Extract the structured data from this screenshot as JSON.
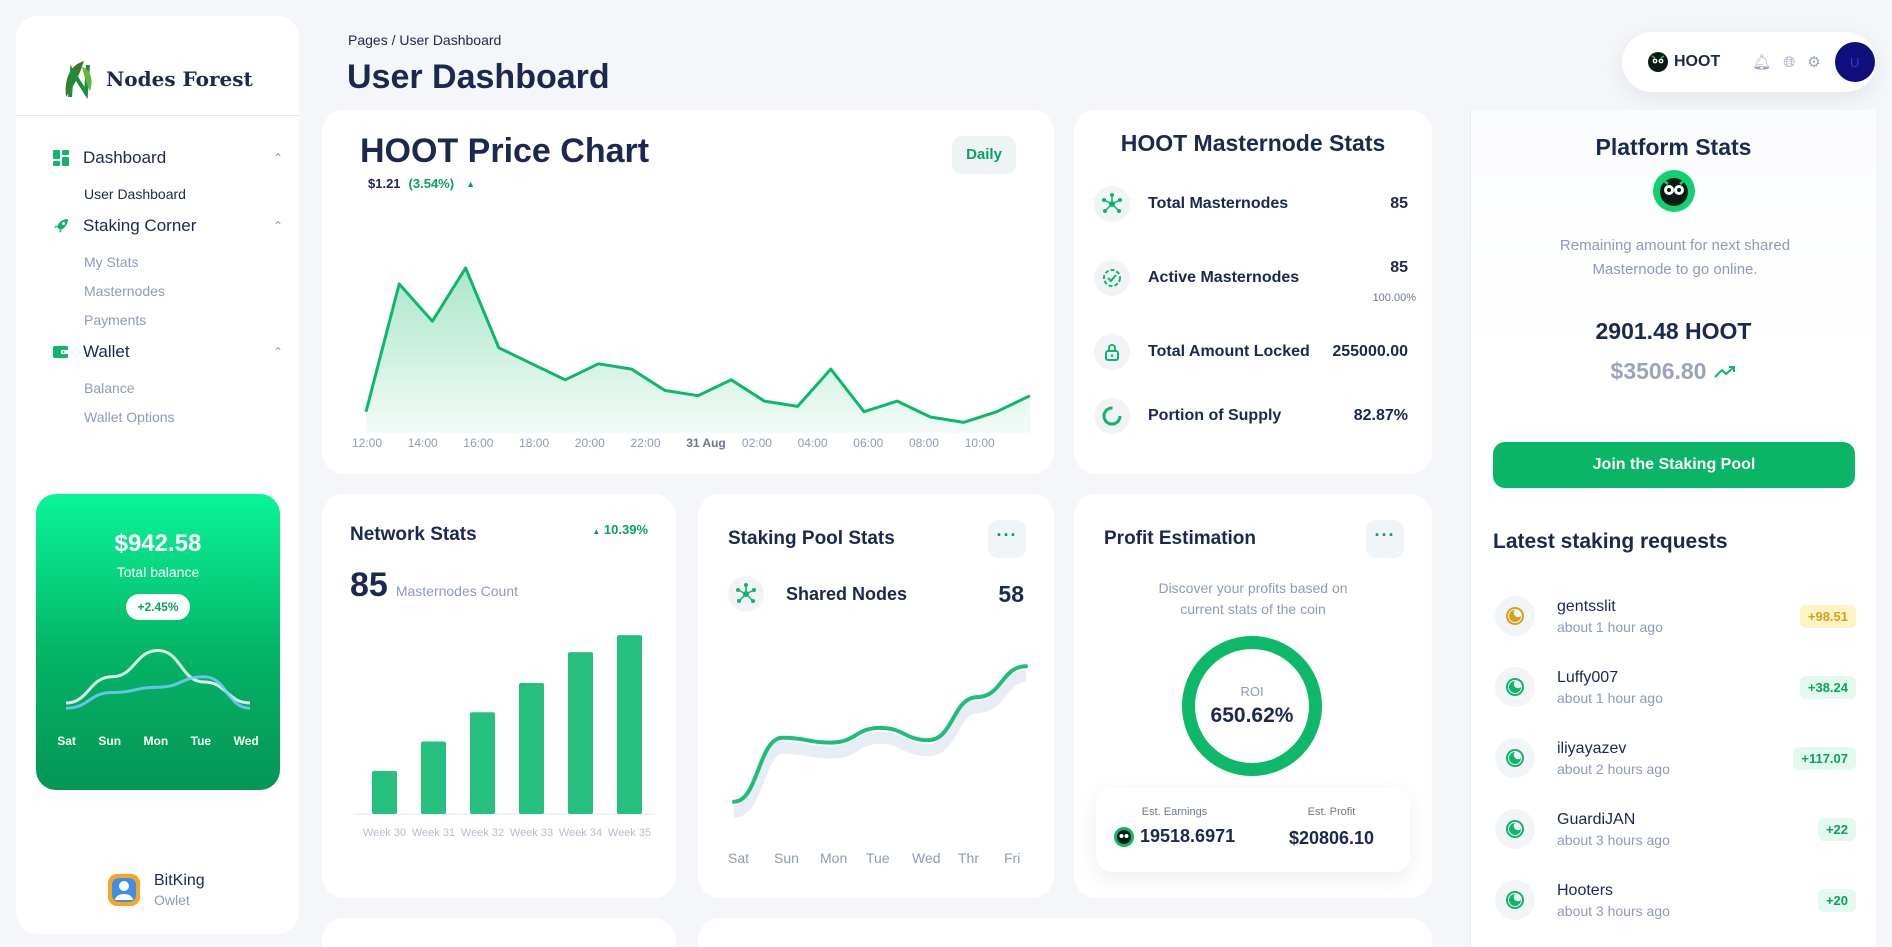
{
  "brand": {
    "name": "Nodes Forest"
  },
  "nav": {
    "dashboard": "Dashboard",
    "user_dashboard": "User Dashboard",
    "staking": "Staking Corner",
    "my_stats": "My Stats",
    "masternodes": "Masternodes",
    "payments": "Payments",
    "wallet": "Wallet",
    "balance": "Balance",
    "wallet_options": "Wallet Options"
  },
  "balance_card": {
    "amount": "$942.58",
    "label": "Total balance",
    "change": "+2.45%",
    "days": [
      "Sat",
      "Sun",
      "Mon",
      "Tue",
      "Wed"
    ]
  },
  "user": {
    "name": "BitKing",
    "role": "Owlet"
  },
  "header": {
    "breadcrumb": "Pages  /  User Dashboard",
    "title": "User Dashboard"
  },
  "topbar": {
    "coin": "HOOT",
    "avatar_initial": "U"
  },
  "price_chart": {
    "title": "HOOT Price Chart",
    "price": "$1.21",
    "change": "(3.54%)",
    "period": "Daily",
    "x_labels": [
      "12:00",
      "14:00",
      "16:00",
      "18:00",
      "20:00",
      "22:00",
      "31 Aug",
      "02:00",
      "04:00",
      "06:00",
      "08:00",
      "10:00"
    ]
  },
  "masternode_stats": {
    "title": "HOOT Masternode Stats",
    "rows": [
      {
        "label": "Total Masternodes",
        "value": "85"
      },
      {
        "label": "Active Masternodes",
        "value": "85",
        "sub": "100.00%"
      },
      {
        "label": "Total Amount Locked",
        "value": "255000.00"
      },
      {
        "label": "Portion of Supply",
        "value": "82.87%"
      }
    ]
  },
  "network_stats": {
    "title": "Network Stats",
    "change": "10.39%",
    "count": "85",
    "count_label": "Masternodes Count",
    "categories": [
      "Week 30",
      "Week 31",
      "Week 32",
      "Week 33",
      "Week 34",
      "Week 35"
    ]
  },
  "staking_pool": {
    "title": "Staking Pool Stats",
    "label": "Shared Nodes",
    "value": "58",
    "days": [
      "Sat",
      "Sun",
      "Mon",
      "Tue",
      "Wed",
      "Thr",
      "Fri"
    ]
  },
  "profit": {
    "title": "Profit Estimation",
    "desc": "Discover your profits based on current stats of the coin",
    "roi_label": "ROI",
    "roi_value": "650.62%",
    "earnings_label": "Est. Earnings",
    "earnings_value": "19518.6971",
    "profit_label": "Est. Profit",
    "profit_value": "$20806.10"
  },
  "platform": {
    "title": "Platform Stats",
    "desc": "Remaining amount for next shared Masternode to go online.",
    "amount": "2901.48 HOOT",
    "usd": "$3506.80",
    "join": "Join the Staking Pool",
    "requests_title": "Latest staking requests",
    "requests": [
      {
        "name": "gentsslit",
        "time": "about 1 hour ago",
        "amount": "+98.51"
      },
      {
        "name": "Luffy007",
        "time": "about 1 hour ago",
        "amount": "+38.24"
      },
      {
        "name": "iliyayazev",
        "time": "about 2 hours ago",
        "amount": "+117.07"
      },
      {
        "name": "GuardiJAN",
        "time": "about 3 hours ago",
        "amount": "+22"
      },
      {
        "name": "Hooters",
        "time": "about 3 hours ago",
        "amount": "+20"
      }
    ]
  },
  "chart_data": [
    {
      "type": "area",
      "x_labels": [
        "12:00",
        "14:00",
        "16:00",
        "18:00",
        "20:00",
        "22:00",
        "31 Aug",
        "02:00",
        "04:00",
        "06:00",
        "08:00",
        "10:00"
      ],
      "values": [
        1.18,
        1.42,
        1.35,
        1.45,
        1.3,
        1.27,
        1.24,
        1.27,
        1.26,
        1.22,
        1.21,
        1.24,
        1.2,
        1.19,
        1.26,
        1.18,
        1.2,
        1.17,
        1.16,
        1.18,
        1.21
      ]
    },
    {
      "type": "bar",
      "categories": [
        "Week 30",
        "Week 31",
        "Week 32",
        "Week 33",
        "Week 34",
        "Week 35"
      ],
      "values": [
        28,
        47,
        66,
        85,
        105,
        116
      ]
    },
    {
      "type": "line",
      "x": [
        "Sat",
        "Sun",
        "Mon",
        "Tue",
        "Wed",
        "Thr",
        "Fri"
      ],
      "values": [
        10,
        62,
        58,
        70,
        60,
        95,
        120
      ]
    },
    {
      "type": "line",
      "x": [
        "Sat",
        "Sun",
        "Mon",
        "Tue",
        "Wed"
      ],
      "series": [
        {
          "values": [
            20,
            45,
            70,
            40,
            20
          ]
        },
        {
          "values": [
            15,
            30,
            35,
            45,
            15
          ]
        }
      ]
    }
  ]
}
